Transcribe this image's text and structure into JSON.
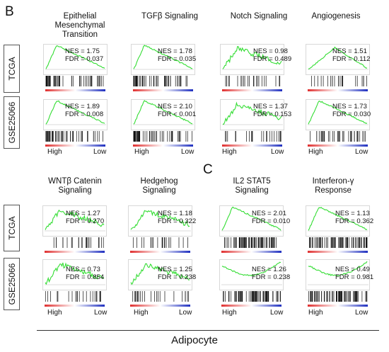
{
  "panel_b": {
    "letter": "B",
    "row_labels": [
      "TCGA",
      "GSE25066"
    ],
    "columns": [
      {
        "title": [
          "Epithelial",
          "Mesenchymal",
          "Transition"
        ]
      },
      {
        "title": [
          "TGFβ Signaling"
        ]
      },
      {
        "title": [
          "Notch Signaling"
        ]
      },
      {
        "title": [
          "Angiogenesis"
        ]
      }
    ],
    "plots": [
      [
        {
          "nes": "NES = 1.75",
          "fdr": "FDR = 0.037"
        },
        {
          "nes": "NES = 1.78",
          "fdr": "FDR = 0.035"
        },
        {
          "nes": "NES = 0.98",
          "fdr": "FDR = 0.489"
        },
        {
          "nes": "NES = 1.51",
          "fdr": "FDR = 0.112"
        }
      ],
      [
        {
          "nes": "NES = 1.89",
          "fdr": "FDR = 0.008"
        },
        {
          "nes": "NES = 2.10",
          "fdr": "FDR < 0.001"
        },
        {
          "nes": "NES = 1.37",
          "fdr": "FDR = 0.153"
        },
        {
          "nes": "NES = 1.73",
          "fdr": "FDR = 0.030"
        }
      ]
    ],
    "axis": {
      "high": "High",
      "low": "Low"
    }
  },
  "panel_c": {
    "letter": "C",
    "row_labels": [
      "TCGA",
      "GSE25066"
    ],
    "columns": [
      {
        "title": [
          "WNTβ Catenin",
          "Signaling"
        ]
      },
      {
        "title": [
          "Hedgehog",
          "Signaling"
        ]
      },
      {
        "title": [
          "IL2 STAT5",
          "Signaling"
        ]
      },
      {
        "title": [
          "Interferon-γ",
          "Response"
        ]
      }
    ],
    "plots": [
      [
        {
          "nes": "NES = 1.27",
          "fdr": "FDR = 0.270"
        },
        {
          "nes": "NES = 1.18",
          "fdr": "FDR = 0.322"
        },
        {
          "nes": "NES = 2.01",
          "fdr": "FDR = 0.010"
        },
        {
          "nes": "NES = 1.13",
          "fdr": "FDR = 0.362"
        }
      ],
      [
        {
          "nes": "NES = 0.73",
          "fdr": "FDR = 0.854"
        },
        {
          "nes": "NES = 1.25",
          "fdr": "FDR = 0.238"
        },
        {
          "nes": "NES = 1.26",
          "fdr": "FDR = 0.238"
        },
        {
          "nes": "NES = 0.49",
          "fdr": "FDR = 0.981"
        }
      ]
    ],
    "axis": {
      "high": "High",
      "low": "Low"
    }
  },
  "footer": {
    "label": "Adipocyte"
  },
  "colors": {
    "curve": "#33dd33",
    "high_end": "#e03030",
    "low_end": "#2030c0",
    "hits": "#111111"
  }
}
